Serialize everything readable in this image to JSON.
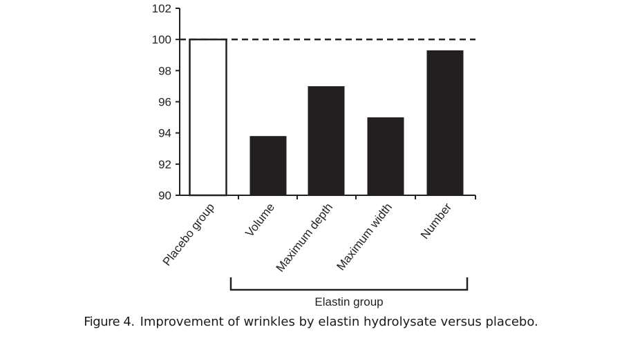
{
  "chart_data": {
    "type": "bar",
    "categories": [
      "Placebo group",
      "Volume",
      "Maximum depth",
      "Maximum width",
      "Number"
    ],
    "values": [
      100,
      93.8,
      97.0,
      95.0,
      99.3
    ],
    "styles": [
      "hollow",
      "filled",
      "filled",
      "filled",
      "filled"
    ],
    "ylim": [
      90,
      102
    ],
    "yticks": [
      90,
      92,
      94,
      96,
      98,
      100,
      102
    ],
    "reference_line": {
      "y": 100,
      "style": "dashed"
    },
    "group_bracket": {
      "label": "Elastin group",
      "categories": [
        "Volume",
        "Maximum depth",
        "Maximum width",
        "Number"
      ]
    },
    "colors": {
      "bar_fill": "#231f20",
      "axis": "#231f20"
    },
    "grid": false,
    "xlabel": "",
    "ylabel": ""
  },
  "caption": {
    "label": "Figure 4.",
    "text": "Improvement of wrinkles by elastin hydrolysate versus placebo."
  }
}
